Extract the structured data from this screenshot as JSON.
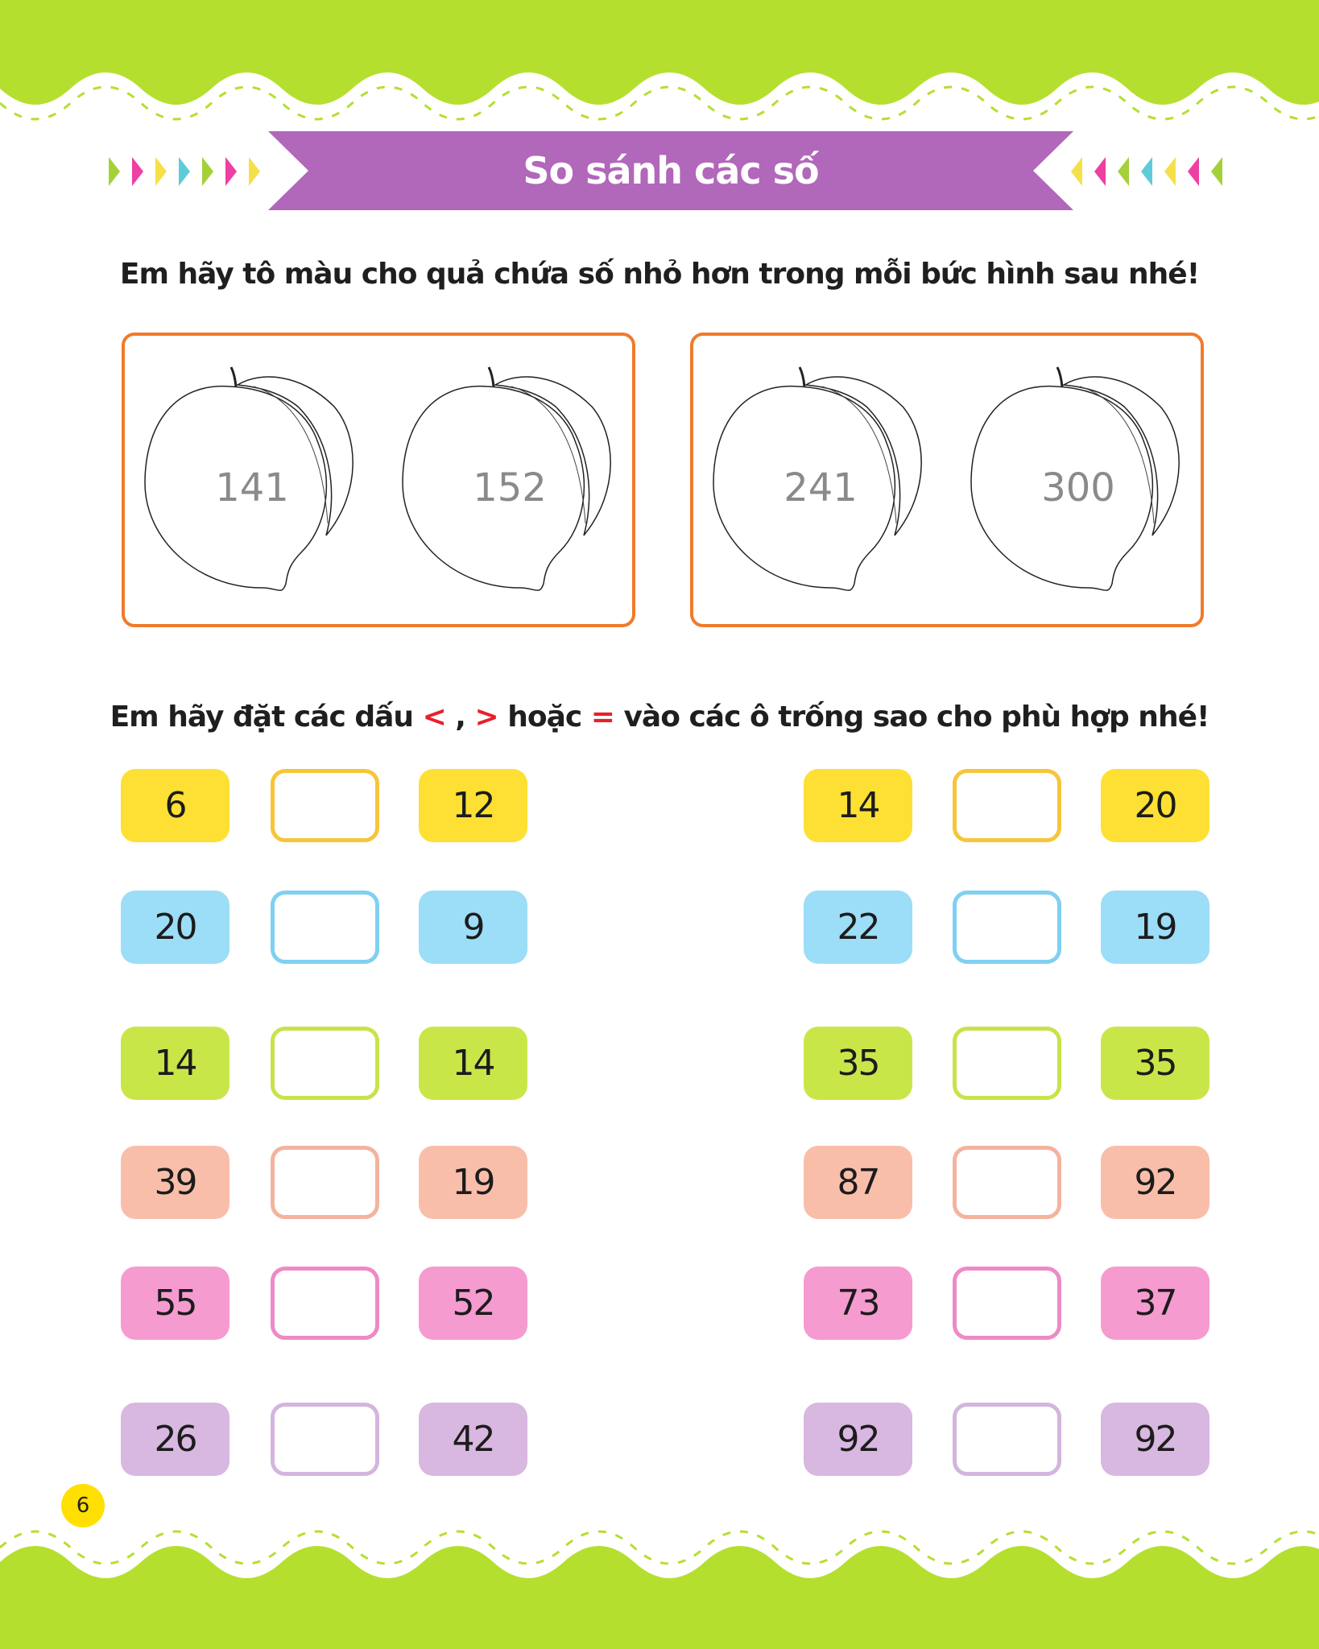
{
  "header": {
    "title": "So sánh các số"
  },
  "colors": {
    "band_green": "#b5df2f",
    "banner_purple": "#b167ba",
    "frame_orange": "#ef7b2b"
  },
  "exercise1": {
    "instruction": "Em hãy tô màu cho quả chứa số nhỏ hơn trong mỗi bức hình sau nhé!",
    "groups": [
      {
        "fruits": [
          "141",
          "152"
        ]
      },
      {
        "fruits": [
          "241",
          "300"
        ]
      }
    ]
  },
  "exercise2": {
    "instruction_prefix": "Em hãy đặt các dấu ",
    "sym_lt": "<",
    "comma": " , ",
    "sym_gt": ">",
    "or_text": "  hoặc ",
    "sym_eq": "=",
    "instruction_suffix": " vào các ô trống sao cho phù hợp nhé!",
    "rows": [
      {
        "fill": "#fde033",
        "border": "#f6c53a",
        "left": [
          "6",
          "12"
        ],
        "right": [
          "14",
          "20"
        ]
      },
      {
        "fill": "#9cddf7",
        "border": "#7fd0f2",
        "left": [
          "20",
          "9"
        ],
        "right": [
          "22",
          "19"
        ]
      },
      {
        "fill": "#c9e649",
        "border": "#c6e44a",
        "left": [
          "14",
          "14"
        ],
        "right": [
          "35",
          "35"
        ]
      },
      {
        "fill": "#f9beaa",
        "border": "#f4b39e",
        "left": [
          "39",
          "19"
        ],
        "right": [
          "87",
          "92"
        ]
      },
      {
        "fill": "#f59bd0",
        "border": "#ee8ac5",
        "left": [
          "55",
          "52"
        ],
        "right": [
          "73",
          "37"
        ]
      },
      {
        "fill": "#d8b7e0",
        "border": "#d3b5de",
        "left": [
          "26",
          "42"
        ],
        "right": [
          "92",
          "92"
        ]
      }
    ]
  },
  "footer": {
    "page_number": "6"
  }
}
